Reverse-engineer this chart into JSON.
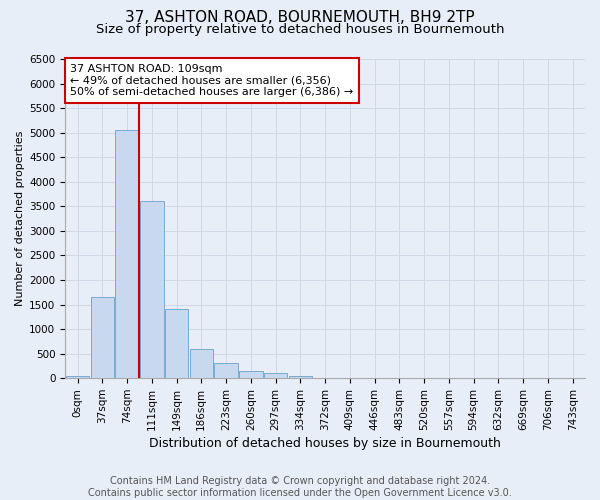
{
  "title": "37, ASHTON ROAD, BOURNEMOUTH, BH9 2TP",
  "subtitle": "Size of property relative to detached houses in Bournemouth",
  "xlabel": "Distribution of detached houses by size in Bournemouth",
  "ylabel": "Number of detached properties",
  "footer_line1": "Contains HM Land Registry data © Crown copyright and database right 2024.",
  "footer_line2": "Contains public sector information licensed under the Open Government Licence v3.0.",
  "bar_labels": [
    "0sqm",
    "37sqm",
    "74sqm",
    "111sqm",
    "149sqm",
    "186sqm",
    "223sqm",
    "260sqm",
    "297sqm",
    "334sqm",
    "372sqm",
    "409sqm",
    "446sqm",
    "483sqm",
    "520sqm",
    "557sqm",
    "594sqm",
    "632sqm",
    "669sqm",
    "706sqm",
    "743sqm"
  ],
  "bar_values": [
    50,
    1650,
    5050,
    3600,
    1400,
    600,
    300,
    150,
    100,
    50,
    10,
    5,
    5,
    0,
    0,
    0,
    0,
    0,
    0,
    0,
    0
  ],
  "bar_color": "#c8d8ee",
  "bar_edge_color": "#7aaad0",
  "ylim_max": 6500,
  "yticks": [
    0,
    500,
    1000,
    1500,
    2000,
    2500,
    3000,
    3500,
    4000,
    4500,
    5000,
    5500,
    6000,
    6500
  ],
  "grid_color": "#d0d8e8",
  "bg_color": "#e8eef8",
  "plot_bg_color": "#e8eef8",
  "vline_color": "#cc0000",
  "vline_x": 2.5,
  "annotation_line1": "37 ASHTON ROAD: 109sqm",
  "annotation_line2": "← 49% of detached houses are smaller (6,356)",
  "annotation_line3": "50% of semi-detached houses are larger (6,386) →",
  "annotation_box_facecolor": "#ffffff",
  "annotation_box_edgecolor": "#cc0000",
  "title_fontsize": 11,
  "subtitle_fontsize": 9.5,
  "xlabel_fontsize": 9,
  "ylabel_fontsize": 8,
  "tick_fontsize": 7.5,
  "annotation_fontsize": 8,
  "footer_fontsize": 7
}
